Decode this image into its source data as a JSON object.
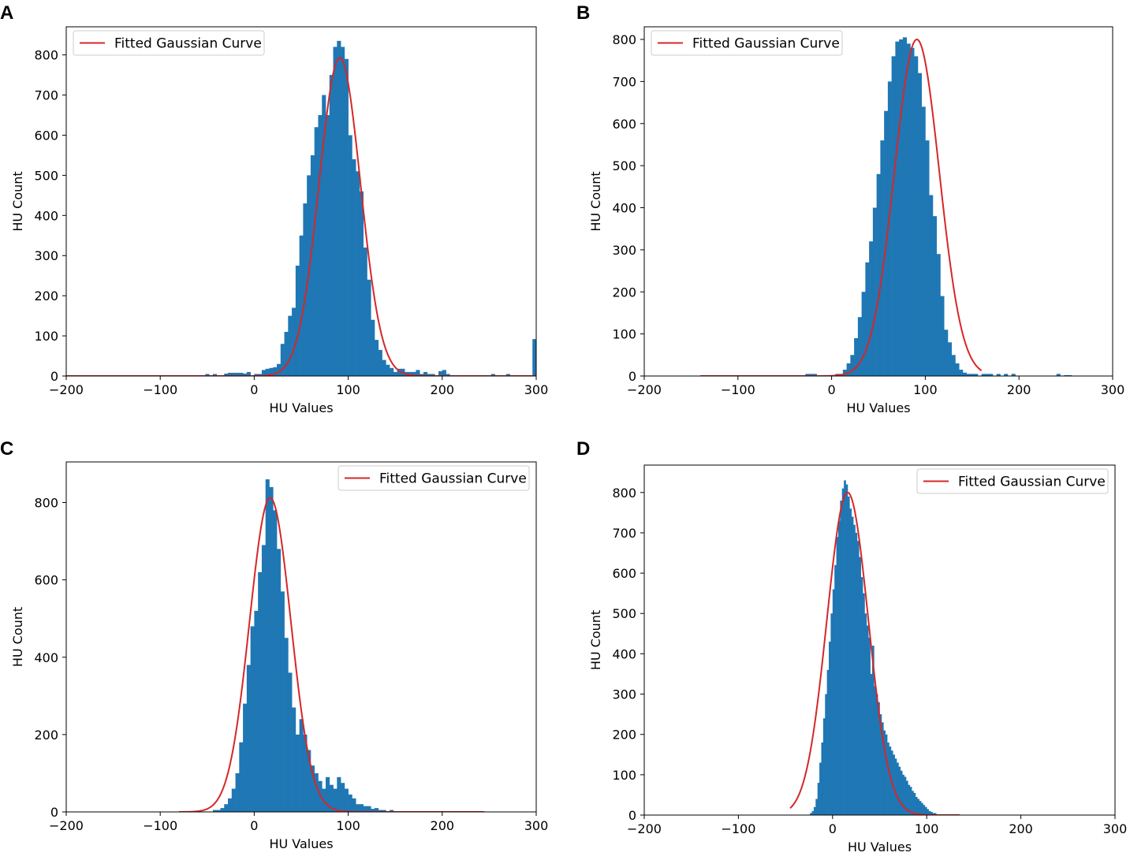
{
  "chart_data": [
    {
      "panel": "A",
      "type": "bar",
      "xlabel": "HU Values",
      "ylabel": "HU Count",
      "xlim": [
        -200,
        300
      ],
      "ylim": [
        0,
        870
      ],
      "xticks": [
        -200,
        -100,
        0,
        100,
        200,
        300
      ],
      "xtick_labels": [
        "−200",
        "−100",
        "0",
        "100",
        "200",
        "300"
      ],
      "yticks": [
        0,
        100,
        200,
        300,
        400,
        500,
        600,
        700,
        800
      ],
      "legend": {
        "label": "Fitted Gaussian Curve",
        "position": "top-left"
      },
      "bin_width": 4,
      "hist_x": [
        -200,
        -196,
        -192,
        -188,
        -184,
        -180,
        -176,
        -172,
        -168,
        -164,
        -160,
        -156,
        -152,
        -148,
        -144,
        -140,
        -136,
        -132,
        -128,
        -124,
        -120,
        -116,
        -112,
        -108,
        -104,
        -100,
        -96,
        -92,
        -88,
        -84,
        -80,
        -76,
        -72,
        -68,
        -64,
        -60,
        -56,
        -52,
        -48,
        -44,
        -40,
        -36,
        -32,
        -28,
        -24,
        -20,
        -16,
        -12,
        -8,
        -4,
        0,
        4,
        8,
        12,
        16,
        20,
        24,
        28,
        32,
        36,
        40,
        44,
        48,
        52,
        56,
        60,
        64,
        68,
        72,
        76,
        80,
        84,
        88,
        92,
        96,
        100,
        104,
        108,
        112,
        116,
        120,
        124,
        128,
        132,
        136,
        140,
        144,
        148,
        152,
        156,
        160,
        164,
        168,
        172,
        176,
        180,
        184,
        188,
        192,
        196,
        200,
        204,
        208,
        212,
        216,
        220,
        224,
        228,
        232,
        236,
        240,
        244,
        248,
        252,
        256,
        260,
        264,
        268,
        272,
        276,
        280,
        284,
        288,
        292,
        296
      ],
      "hist_values": [
        0,
        0,
        0,
        0,
        0,
        0,
        0,
        0,
        0,
        0,
        0,
        0,
        0,
        2,
        0,
        0,
        0,
        0,
        0,
        0,
        0,
        0,
        0,
        0,
        0,
        0,
        0,
        0,
        0,
        0,
        0,
        0,
        0,
        0,
        0,
        0,
        2,
        5,
        0,
        5,
        0,
        0,
        6,
        8,
        8,
        8,
        8,
        6,
        10,
        0,
        5,
        5,
        15,
        18,
        20,
        22,
        30,
        80,
        110,
        150,
        170,
        275,
        350,
        430,
        500,
        550,
        620,
        650,
        700,
        650,
        750,
        820,
        835,
        820,
        790,
        600,
        540,
        510,
        460,
        320,
        240,
        140,
        90,
        65,
        40,
        28,
        20,
        10,
        18,
        18,
        10,
        10,
        10,
        15,
        5,
        10,
        5,
        5,
        0,
        12,
        15,
        5,
        0,
        0,
        0,
        0,
        0,
        0,
        0,
        0,
        0,
        0,
        0,
        5,
        0,
        0,
        0,
        5,
        0,
        0,
        0,
        0,
        0,
        0,
        92
      ],
      "gaussian": {
        "mean": 91,
        "sigma": 22,
        "peak": 793,
        "x_range": [
          -200,
          300
        ]
      }
    },
    {
      "panel": "B",
      "type": "bar",
      "xlabel": "HU Values",
      "ylabel": "HU Count",
      "xlim": [
        -200,
        300
      ],
      "ylim": [
        0,
        830
      ],
      "xticks": [
        -200,
        -100,
        0,
        100,
        200,
        300
      ],
      "xtick_labels": [
        "−200",
        "−100",
        "0",
        "100",
        "200",
        "300"
      ],
      "yticks": [
        0,
        100,
        200,
        300,
        400,
        500,
        600,
        700,
        800
      ],
      "legend": {
        "label": "Fitted Gaussian Curve",
        "position": "top-left"
      },
      "bin_width": 4,
      "hist_x": [
        -140,
        -136,
        -132,
        -128,
        -124,
        -120,
        -116,
        -112,
        -108,
        -104,
        -100,
        -96,
        -92,
        -88,
        -84,
        -80,
        -76,
        -72,
        -68,
        -64,
        -60,
        -56,
        -52,
        -48,
        -44,
        -40,
        -36,
        -32,
        -28,
        -24,
        -20,
        -16,
        -12,
        -8,
        -4,
        0,
        4,
        8,
        12,
        16,
        20,
        24,
        28,
        32,
        36,
        40,
        44,
        48,
        52,
        56,
        60,
        64,
        68,
        72,
        76,
        80,
        84,
        88,
        92,
        96,
        100,
        104,
        108,
        112,
        116,
        120,
        124,
        128,
        132,
        136,
        140,
        144,
        148,
        152,
        156,
        160,
        164,
        168,
        172,
        176,
        180,
        184,
        188,
        192,
        196,
        200,
        204,
        208,
        212,
        216,
        220,
        224,
        228,
        232,
        236,
        240,
        244,
        248,
        252
      ],
      "hist_values": [
        2,
        0,
        0,
        0,
        0,
        0,
        0,
        0,
        0,
        0,
        0,
        0,
        0,
        0,
        0,
        0,
        0,
        0,
        0,
        0,
        0,
        0,
        0,
        0,
        0,
        2,
        0,
        0,
        5,
        5,
        5,
        0,
        0,
        0,
        0,
        2,
        5,
        5,
        15,
        30,
        50,
        90,
        140,
        200,
        270,
        320,
        400,
        480,
        560,
        630,
        700,
        760,
        795,
        800,
        805,
        790,
        780,
        760,
        720,
        640,
        560,
        430,
        380,
        290,
        190,
        110,
        80,
        50,
        30,
        15,
        8,
        5,
        5,
        5,
        0,
        5,
        5,
        5,
        0,
        5,
        0,
        5,
        0,
        5,
        0,
        0,
        0,
        0,
        0,
        0,
        0,
        0,
        0,
        0,
        0,
        5,
        0,
        2,
        2
      ],
      "gaussian": {
        "mean": 91,
        "sigma": 24,
        "peak": 800,
        "x_range": [
          -140,
          160
        ]
      }
    },
    {
      "panel": "C",
      "type": "bar",
      "xlabel": "HU Values",
      "ylabel": "HU Count",
      "xlim": [
        -200,
        300
      ],
      "ylim": [
        0,
        905
      ],
      "xticks": [
        -200,
        -100,
        0,
        100,
        200,
        300
      ],
      "xtick_labels": [
        "−200",
        "−100",
        "0",
        "100",
        "200",
        "300"
      ],
      "yticks": [
        0,
        200,
        400,
        600,
        800
      ],
      "legend": {
        "label": "Fitted Gaussian Curve",
        "position": "top-right"
      },
      "bin_width": 4,
      "hist_x": [
        -80,
        -76,
        -72,
        -68,
        -64,
        -60,
        -56,
        -52,
        -48,
        -44,
        -40,
        -36,
        -32,
        -28,
        -24,
        -20,
        -16,
        -12,
        -8,
        -4,
        0,
        4,
        8,
        12,
        16,
        20,
        24,
        28,
        32,
        36,
        40,
        44,
        48,
        52,
        56,
        60,
        64,
        68,
        72,
        76,
        80,
        84,
        88,
        92,
        96,
        100,
        104,
        108,
        112,
        116,
        120,
        124,
        128,
        132,
        136,
        140,
        144,
        148,
        152,
        156,
        160,
        164,
        168,
        172,
        176,
        180,
        184,
        188,
        192,
        196,
        200,
        204,
        208,
        212,
        216,
        220,
        224,
        228,
        232,
        236,
        240
      ],
      "hist_values": [
        0,
        0,
        0,
        0,
        0,
        0,
        0,
        0,
        0,
        5,
        5,
        10,
        20,
        35,
        60,
        100,
        180,
        280,
        380,
        480,
        520,
        620,
        690,
        860,
        840,
        780,
        680,
        570,
        450,
        360,
        270,
        200,
        240,
        200,
        160,
        120,
        100,
        80,
        60,
        90,
        70,
        60,
        90,
        75,
        60,
        45,
        35,
        20,
        20,
        15,
        15,
        8,
        10,
        5,
        5,
        0,
        5,
        0,
        0,
        0,
        2,
        0,
        0,
        2,
        0,
        0,
        0,
        2,
        0,
        0,
        0,
        0,
        0,
        0,
        0,
        0,
        0,
        0,
        0,
        0,
        2
      ],
      "gaussian": {
        "mean": 17,
        "sigma": 22,
        "peak": 812,
        "x_range": [
          -80,
          245
        ]
      }
    },
    {
      "panel": "D",
      "type": "bar",
      "xlabel": "HU Values",
      "ylabel": "HU Count",
      "xlim": [
        -200,
        300
      ],
      "ylim": [
        0,
        868
      ],
      "xticks": [
        -200,
        -100,
        0,
        100,
        200,
        300
      ],
      "xtick_labels": [
        "−200",
        "−100",
        "0",
        "100",
        "200",
        "300"
      ],
      "yticks": [
        0,
        100,
        200,
        300,
        400,
        500,
        600,
        700,
        800
      ],
      "legend": {
        "label": "Fitted Gaussian Curve",
        "position": "top-right"
      },
      "bin_width": 2,
      "hist_x": [
        -44,
        -42,
        -40,
        -38,
        -36,
        -34,
        -32,
        -30,
        -28,
        -26,
        -24,
        -22,
        -20,
        -18,
        -16,
        -14,
        -12,
        -10,
        -8,
        -6,
        -4,
        -2,
        0,
        2,
        4,
        6,
        8,
        10,
        12,
        14,
        16,
        18,
        20,
        22,
        24,
        26,
        28,
        30,
        32,
        34,
        36,
        38,
        40,
        42,
        44,
        46,
        48,
        50,
        52,
        54,
        56,
        58,
        60,
        62,
        64,
        66,
        68,
        70,
        72,
        74,
        76,
        78,
        80,
        82,
        84,
        86,
        88,
        90,
        92,
        94,
        96,
        98,
        100,
        102,
        104,
        106,
        108,
        110,
        112,
        114,
        116,
        118,
        120,
        122,
        124,
        126,
        128,
        130,
        132
      ],
      "hist_values": [
        0,
        0,
        0,
        0,
        0,
        0,
        0,
        0,
        0,
        0,
        5,
        10,
        20,
        40,
        80,
        130,
        180,
        240,
        300,
        360,
        430,
        500,
        560,
        620,
        690,
        730,
        780,
        810,
        830,
        820,
        790,
        760,
        740,
        720,
        700,
        680,
        640,
        590,
        550,
        500,
        470,
        440,
        350,
        420,
        320,
        300,
        280,
        250,
        230,
        210,
        200,
        180,
        170,
        160,
        150,
        140,
        130,
        120,
        110,
        100,
        95,
        85,
        75,
        70,
        60,
        55,
        45,
        40,
        35,
        30,
        25,
        20,
        15,
        10,
        8,
        5,
        5,
        2,
        2,
        2,
        2,
        2,
        2,
        2,
        2,
        0,
        0,
        0,
        0
      ],
      "gaussian": {
        "mean": 16,
        "sigma": 22,
        "peak": 800,
        "x_range": [
          -45,
          135
        ]
      }
    }
  ],
  "colors": {
    "bar": "#1f77b4",
    "curve": "#d62728",
    "axis": "#000000",
    "legend_border": "#cccccc"
  }
}
